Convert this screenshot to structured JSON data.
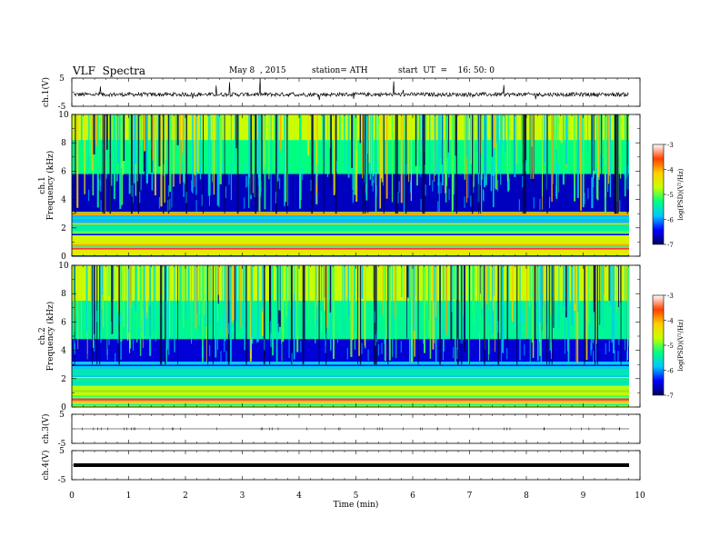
{
  "header": {
    "title": "VLF  Spectra",
    "date": "May 8  , 2015",
    "station": "station= ATH",
    "start": "start  UT  =    16: 50: 0"
  },
  "chart_data": [
    {
      "type": "line",
      "name": "ch1-waveform",
      "ylabel": "ch.1(V)",
      "ylim": [
        -5,
        5
      ],
      "yticks": [
        "5",
        "-5"
      ],
      "xlim": [
        0,
        10
      ],
      "x_range_of_data": [
        0,
        9.8
      ],
      "baseline": -0.8,
      "description_level": "noisy waveform around -0.8 V with spikes"
    },
    {
      "type": "heatmap",
      "name": "ch1-spectrogram",
      "ylabel": "ch.1\nFrequency  (kHz)",
      "ylim": [
        0,
        10
      ],
      "yticks": [
        "0",
        "2",
        "4",
        "6",
        "8",
        "10"
      ],
      "xlim": [
        0,
        10
      ],
      "colorbar": {
        "label": "log(PSD)(V²/Hz)",
        "range": [
          -7,
          -3
        ],
        "ticks": [
          "-3",
          "-4",
          "-5",
          "-6",
          "-7"
        ]
      },
      "bands_khz": [
        {
          "from": 0,
          "to": 1.5,
          "level": -4.2
        },
        {
          "from": 1.5,
          "to": 2.3,
          "level": -5.2
        },
        {
          "from": 2.3,
          "to": 3.0,
          "level": -5.7
        },
        {
          "from": 3.0,
          "to": 5.8,
          "level": -6.6
        },
        {
          "from": 5.8,
          "to": 8.2,
          "level": -5.0
        },
        {
          "from": 8.2,
          "to": 10,
          "level": -4.3
        }
      ]
    },
    {
      "type": "heatmap",
      "name": "ch2-spectrogram",
      "ylabel": "ch.2\nFrequency  (kHz)",
      "ylim": [
        0,
        10
      ],
      "yticks": [
        "0",
        "2",
        "4",
        "6",
        "8",
        "10"
      ],
      "xlim": [
        0,
        10
      ],
      "colorbar": {
        "label": "log(PSD)(V²/Hz)",
        "range": [
          -7,
          -3
        ],
        "ticks": [
          "-3",
          "-4",
          "-5",
          "-6",
          "-7"
        ]
      },
      "bands_khz": [
        {
          "from": 0,
          "to": 1.5,
          "level": -4.4
        },
        {
          "from": 1.5,
          "to": 2.5,
          "level": -5.3
        },
        {
          "from": 2.5,
          "to": 3.2,
          "level": -5.6
        },
        {
          "from": 3.2,
          "to": 4.8,
          "level": -6.5
        },
        {
          "from": 4.8,
          "to": 7.5,
          "level": -5.1
        },
        {
          "from": 7.5,
          "to": 10,
          "level": -4.3
        }
      ]
    },
    {
      "type": "line",
      "name": "ch3-waveform",
      "ylabel": "ch.3(V)",
      "ylim": [
        -5,
        5
      ],
      "yticks": [
        "5",
        "-5"
      ],
      "xlim": [
        0,
        10
      ],
      "baseline": 0,
      "description_level": "flat near 0 V"
    },
    {
      "type": "line",
      "name": "ch4-waveform",
      "ylabel": "ch.4(V)",
      "ylim": [
        -5,
        5
      ],
      "yticks": [
        "5",
        "-5"
      ],
      "xlim": [
        0,
        10
      ],
      "baseline": 0,
      "description_level": "thick flat trace near 0 V"
    }
  ],
  "xaxis": {
    "label": "Time  (min)",
    "ticks": [
      "0",
      "1",
      "2",
      "3",
      "4",
      "5",
      "6",
      "7",
      "8",
      "9",
      "10"
    ]
  },
  "colors": {
    "colormap": [
      "#000060",
      "#0000ff",
      "#00c8ff",
      "#00ff80",
      "#c8ff00",
      "#ffd000",
      "#ff4000",
      "#ffffff"
    ]
  }
}
